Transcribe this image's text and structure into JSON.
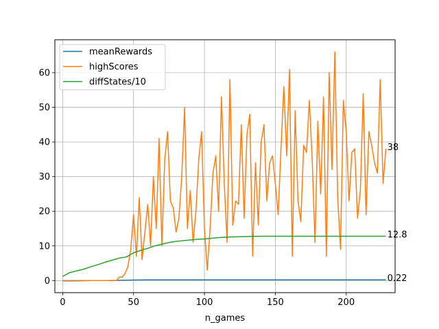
{
  "chart_data": {
    "type": "line",
    "title": "",
    "xlabel": "n_games",
    "ylabel": "",
    "xlim": [
      -5.5,
      234.5
    ],
    "ylim": [
      -3.5,
      69.5
    ],
    "xticks": [
      0,
      50,
      100,
      150,
      200
    ],
    "yticks": [
      0,
      10,
      20,
      30,
      40,
      50,
      60
    ],
    "grid": true,
    "legend_position": "upper-left",
    "series": [
      {
        "name": "meanRewards",
        "color": "#1f77b4",
        "x": [
          0,
          10,
          20,
          30,
          40,
          50,
          60,
          70,
          80,
          90,
          100,
          110,
          120,
          130,
          140,
          150,
          160,
          170,
          180,
          190,
          200,
          210,
          220,
          228
        ],
        "y": [
          -0.1,
          -0.1,
          0.0,
          0.0,
          0.05,
          0.15,
          0.2,
          0.22,
          0.22,
          0.22,
          0.22,
          0.22,
          0.22,
          0.22,
          0.22,
          0.22,
          0.22,
          0.22,
          0.22,
          0.22,
          0.22,
          0.22,
          0.22,
          0.22
        ],
        "end_label": "0.22"
      },
      {
        "name": "highScores",
        "color": "#ff7f0e",
        "x": [
          0,
          2,
          4,
          6,
          8,
          10,
          12,
          14,
          16,
          18,
          20,
          22,
          24,
          26,
          28,
          30,
          32,
          34,
          36,
          38,
          40,
          42,
          44,
          46,
          48,
          50,
          52,
          54,
          56,
          58,
          60,
          62,
          64,
          66,
          68,
          70,
          72,
          74,
          76,
          78,
          80,
          82,
          84,
          86,
          88,
          90,
          92,
          94,
          96,
          98,
          100,
          102,
          104,
          106,
          108,
          110,
          112,
          114,
          116,
          118,
          120,
          122,
          124,
          126,
          128,
          130,
          132,
          134,
          136,
          138,
          140,
          142,
          144,
          146,
          148,
          150,
          152,
          154,
          156,
          158,
          160,
          162,
          164,
          166,
          168,
          170,
          172,
          174,
          176,
          178,
          180,
          182,
          184,
          186,
          188,
          190,
          192,
          194,
          196,
          198,
          200,
          202,
          204,
          206,
          208,
          210,
          212,
          214,
          216,
          218,
          220,
          222,
          224,
          226,
          228
        ],
        "y": [
          0,
          0,
          0,
          0,
          0,
          0,
          0,
          0,
          0,
          0,
          0,
          0,
          0,
          0,
          0,
          0,
          0,
          0,
          0,
          0,
          1,
          1,
          2,
          4,
          9,
          19,
          7,
          24,
          6,
          14,
          22,
          10,
          30,
          15,
          41,
          10,
          35,
          43,
          23,
          21,
          14,
          18,
          30,
          50,
          15,
          26,
          11,
          20,
          35,
          43,
          15,
          3,
          15,
          31,
          36,
          20,
          53,
          28,
          11,
          58,
          16,
          23,
          22,
          45,
          18,
          42,
          48,
          7,
          34,
          16,
          40,
          45,
          23,
          34,
          36,
          28,
          19,
          38,
          56,
          36,
          61,
          7,
          49,
          23,
          17,
          39,
          37,
          52,
          35,
          11,
          46,
          25,
          53,
          7,
          60,
          32,
          66,
          24,
          9,
          52,
          43,
          23,
          37,
          38,
          18,
          26,
          54,
          19,
          43,
          39,
          34,
          31,
          58,
          28,
          38
        ],
        "end_label": "38"
      },
      {
        "name": "diffStates/10",
        "color": "#2ca02c",
        "x": [
          0,
          5,
          10,
          15,
          20,
          25,
          30,
          35,
          40,
          45,
          50,
          55,
          60,
          65,
          70,
          75,
          80,
          85,
          90,
          95,
          100,
          105,
          110,
          115,
          120,
          130,
          140,
          150,
          160,
          170,
          180,
          190,
          200,
          210,
          220,
          228
        ],
        "y": [
          1.2,
          2.3,
          2.8,
          3.3,
          4.0,
          4.6,
          5.3,
          5.9,
          6.5,
          6.8,
          8.0,
          8.7,
          9.3,
          10.0,
          10.5,
          11.0,
          11.3,
          11.5,
          11.7,
          11.9,
          12.0,
          12.2,
          12.4,
          12.5,
          12.6,
          12.7,
          12.8,
          12.8,
          12.8,
          12.8,
          12.8,
          12.8,
          12.8,
          12.8,
          12.8,
          12.8
        ],
        "end_label": "12.8"
      }
    ]
  }
}
